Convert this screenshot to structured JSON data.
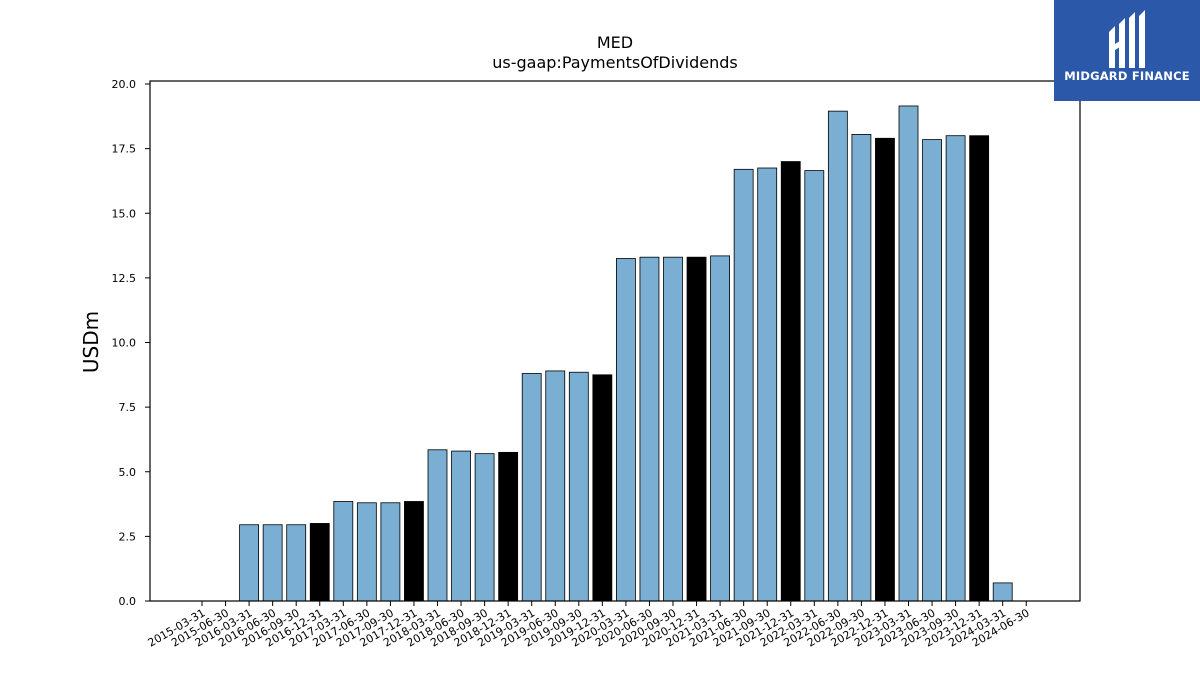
{
  "brand": {
    "name": "MIDGARD FINANCE",
    "bg_color": "#2b58a8"
  },
  "chart_data": {
    "type": "bar",
    "title": "MED",
    "subtitle": "us-gaap:PaymentsOfDividends",
    "ylabel": "USDm",
    "xlabel": "",
    "ylim": [
      0,
      20
    ],
    "yticks": [
      "0.0",
      "2.5",
      "5.0",
      "7.5",
      "10.0",
      "12.5",
      "15.0",
      "17.5",
      "20.0"
    ],
    "grid": false,
    "colors": {
      "quarter": "#7aaed3",
      "fiscal_year_end": "#000000"
    },
    "categories": [
      "2015-03-31",
      "2015-06-30",
      "2016-03-31",
      "2016-06-30",
      "2016-09-30",
      "2016-12-31",
      "2017-03-31",
      "2017-06-30",
      "2017-09-30",
      "2017-12-31",
      "2018-03-31",
      "2018-06-30",
      "2018-09-30",
      "2018-12-31",
      "2019-03-31",
      "2019-06-30",
      "2019-09-30",
      "2019-12-31",
      "2020-03-31",
      "2020-06-30",
      "2020-09-30",
      "2020-12-31",
      "2021-03-31",
      "2021-06-30",
      "2021-09-30",
      "2021-12-31",
      "2022-03-31",
      "2022-06-30",
      "2022-09-30",
      "2022-12-31",
      "2023-03-31",
      "2023-06-30",
      "2023-09-30",
      "2023-12-31",
      "2024-03-31",
      "2024-06-30"
    ],
    "values": [
      0,
      0,
      2.95,
      2.95,
      2.95,
      3.0,
      3.85,
      3.8,
      3.8,
      3.85,
      5.85,
      5.8,
      5.7,
      5.75,
      8.8,
      8.9,
      8.85,
      8.75,
      13.25,
      13.3,
      13.3,
      13.3,
      13.35,
      16.7,
      16.75,
      17.0,
      16.65,
      18.95,
      18.05,
      17.9,
      19.15,
      17.85,
      18.0,
      18.0,
      0.7,
      0
    ],
    "highlight": [
      false,
      false,
      false,
      false,
      false,
      true,
      false,
      false,
      false,
      true,
      false,
      false,
      false,
      true,
      false,
      false,
      false,
      true,
      false,
      false,
      false,
      true,
      false,
      false,
      false,
      true,
      false,
      false,
      false,
      true,
      false,
      false,
      false,
      true,
      false,
      false
    ]
  }
}
